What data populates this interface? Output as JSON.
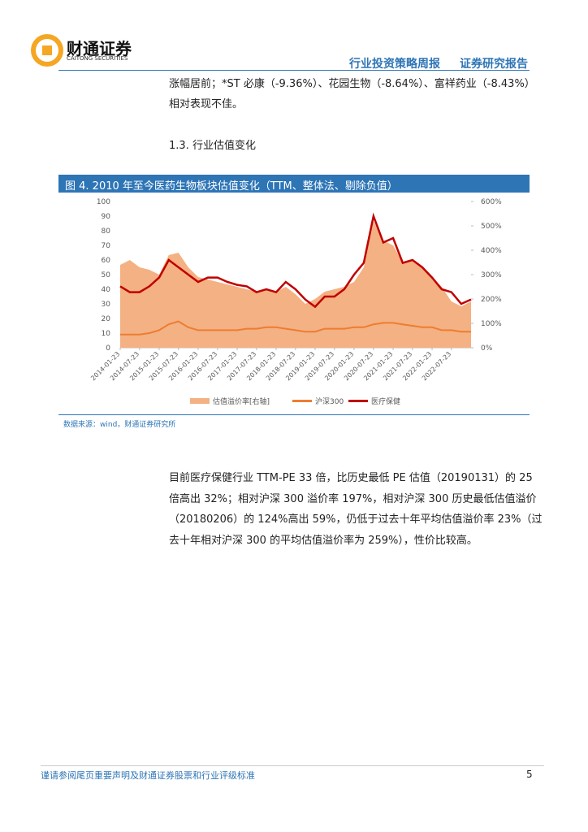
{
  "header": {
    "logo_cn": "财通证券",
    "logo_en": "CAITONG SECURITIES",
    "report_type": "行业投资策略周报",
    "report_kind": "证券研究报告"
  },
  "intro_lines": [
    "涨幅居前；*ST 必康（-9.36%）、花园生物（-8.64%）、富祥药业（-8.43%）",
    "相对表现不佳。"
  ],
  "section_title": "1.3. 行业估值变化",
  "figure": {
    "caption": "图 4. 2010 年至今医药生物板块估值变化（TTM、整体法、剔除负值）",
    "source": "数据来源：wind，财通证券研究所",
    "chart_data": {
      "type": "line",
      "x": [
        "2014-01-23",
        "2014-04-23",
        "2014-07-23",
        "2014-10-23",
        "2015-01-23",
        "2015-04-23",
        "2015-07-23",
        "2015-10-23",
        "2016-01-23",
        "2016-04-23",
        "2016-07-23",
        "2016-10-23",
        "2017-01-23",
        "2017-04-23",
        "2017-07-23",
        "2017-10-23",
        "2018-01-23",
        "2018-04-23",
        "2018-07-23",
        "2018-10-23",
        "2019-01-23",
        "2019-04-23",
        "2019-07-23",
        "2019-10-23",
        "2020-01-23",
        "2020-04-23",
        "2020-07-23",
        "2020-10-23",
        "2021-01-23",
        "2021-04-23",
        "2021-07-23",
        "2021-10-23",
        "2022-01-23",
        "2022-04-23",
        "2022-07-23",
        "2022-10-23",
        "2023-01-23"
      ],
      "xlim": [
        "2014-01-23",
        "2023-01-23"
      ],
      "xticks": [
        "2014-01-23",
        "2014-07-23",
        "2015-01-23",
        "2015-07-23",
        "2016-01-23",
        "2016-07-23",
        "2017-01-23",
        "2017-07-23",
        "2018-01-23",
        "2018-07-23",
        "2019-01-23",
        "2019-07-23",
        "2020-01-23",
        "2020-07-23",
        "2021-01-23",
        "2021-07-23",
        "2022-01-23",
        "2022-07-23"
      ],
      "ylim": [
        0,
        100
      ],
      "yticks": [
        0,
        10,
        20,
        30,
        40,
        50,
        60,
        70,
        80,
        90,
        100
      ],
      "y2lim": [
        0,
        600
      ],
      "y2ticks": [
        {
          "value": 0,
          "label": "0%"
        },
        {
          "value": 100,
          "label": "100%"
        },
        {
          "value": 200,
          "label": "200%"
        },
        {
          "value": 300,
          "label": "300%"
        },
        {
          "value": 400,
          "label": "400%"
        },
        {
          "value": 500,
          "label": "500%"
        },
        {
          "value": 600,
          "label": "600%"
        }
      ],
      "series": [
        {
          "name": "估值溢价率[右轴]",
          "color": "#f4b183",
          "kind": "area",
          "axis": "y2",
          "values": [
            340,
            360,
            330,
            320,
            300,
            380,
            390,
            330,
            290,
            280,
            270,
            260,
            250,
            240,
            230,
            240,
            230,
            250,
            220,
            180,
            200,
            230,
            240,
            250,
            270,
            330,
            520,
            440,
            420,
            350,
            360,
            330,
            290,
            250,
            190,
            170,
            190
          ]
        },
        {
          "name": "沪深300",
          "color": "#ed7d31",
          "kind": "line",
          "values": [
            9,
            9,
            9,
            10,
            12,
            16,
            18,
            14,
            12,
            12,
            12,
            12,
            12,
            13,
            13,
            14,
            14,
            13,
            12,
            11,
            11,
            13,
            13,
            13,
            14,
            14,
            16,
            17,
            17,
            16,
            15,
            14,
            14,
            12,
            12,
            11,
            11
          ]
        },
        {
          "name": "医疗保健",
          "color": "#c00000",
          "kind": "line",
          "values": [
            42,
            38,
            38,
            42,
            48,
            60,
            55,
            50,
            45,
            48,
            48,
            45,
            43,
            42,
            38,
            40,
            38,
            45,
            40,
            33,
            28,
            35,
            35,
            40,
            50,
            58,
            90,
            72,
            75,
            58,
            60,
            55,
            48,
            40,
            38,
            30,
            33
          ]
        }
      ]
    }
  },
  "body_lines": [
    "目前医疗保健行业 TTM-PE 33 倍，比历史最低 PE 估值（20190131）的 25",
    "倍高出 32%；相对沪深 300 溢价率 197%，相对沪深 300 历史最低估值溢价",
    "（20180206）的 124%高出 59%，仍低于过去十年平均估值溢价率 23%（过",
    "去十年相对沪深 300 的平均估值溢价率为 259%），性价比较高。"
  ],
  "footer": {
    "disclaimer": "谨请参阅尾页重要声明及财通证券股票和行业评级标准",
    "page": "5"
  }
}
